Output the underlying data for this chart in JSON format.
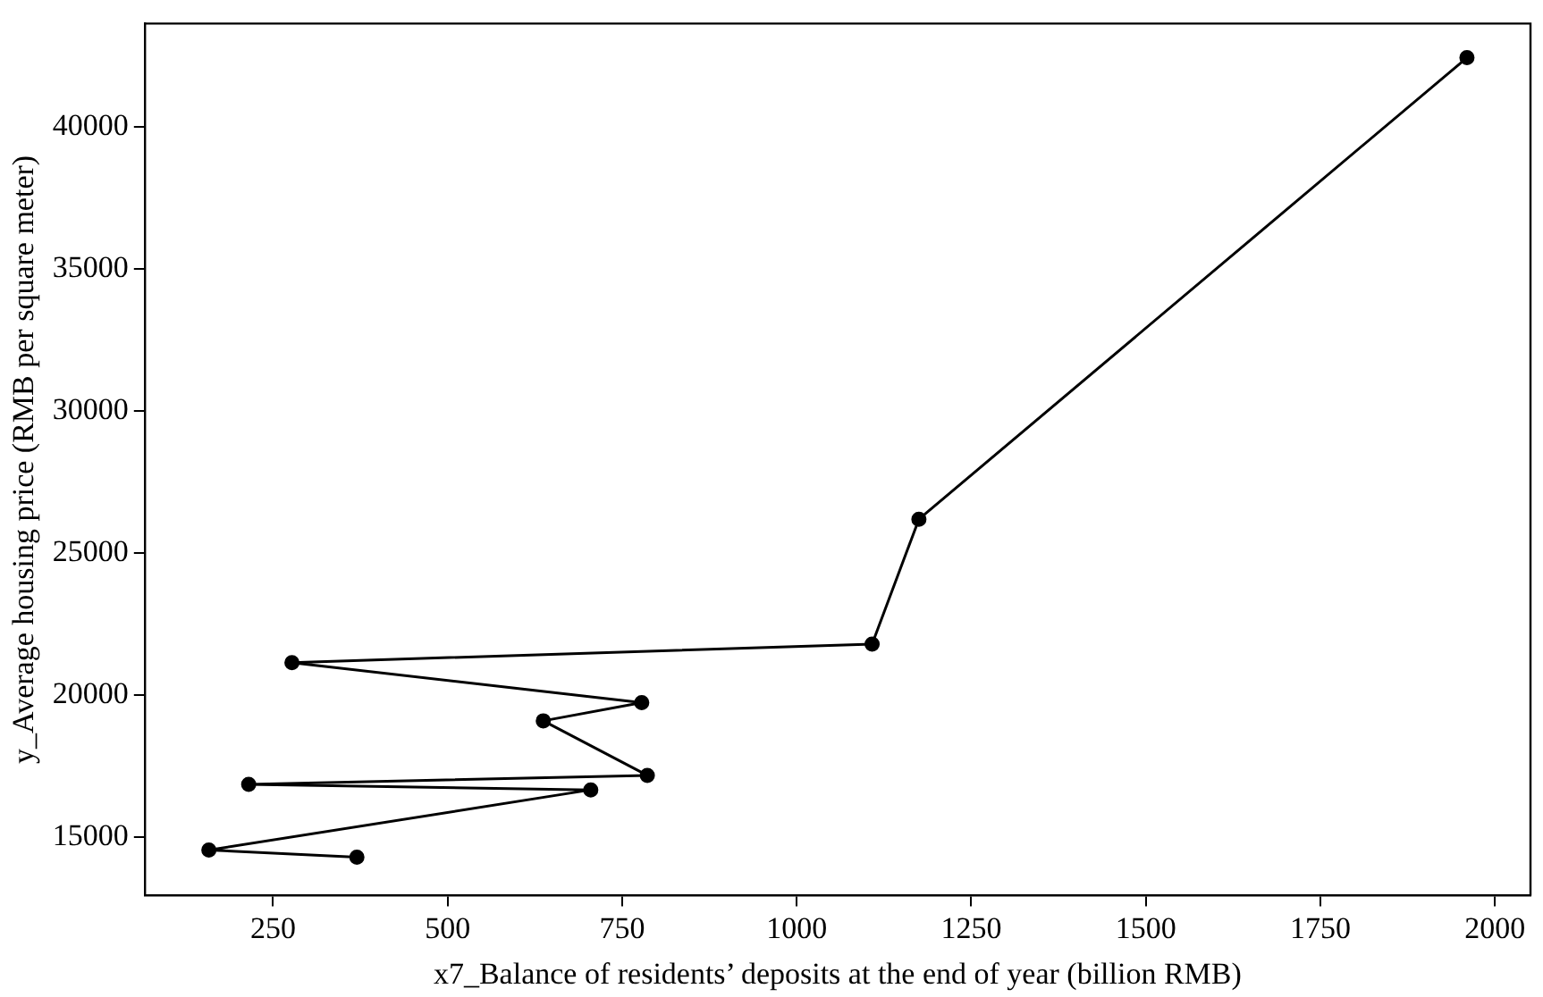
{
  "chart_data": {
    "type": "line",
    "xlabel": "x7_Balance of residents’ deposits at the end of year (billion RMB)",
    "ylabel": "y_Average housing price (RMB per square meter)",
    "series": [
      {
        "color": "#000000",
        "x": [
          370,
          158,
          705,
          215,
          786,
          637,
          778,
          277,
          1108,
          1175,
          1960
        ],
        "values": [
          14300,
          14550,
          16670,
          16860,
          17180,
          19100,
          19740,
          21150,
          21800,
          26200,
          42450
        ]
      }
    ],
    "xlim": [
      66,
      2051
    ],
    "ylim": [
      12950,
      43650
    ],
    "xticks": [
      250,
      500,
      750,
      1000,
      1250,
      1500,
      1750,
      2000
    ],
    "yticks": [
      15000,
      20000,
      25000,
      30000,
      35000,
      40000
    ],
    "grid": false,
    "legend": false,
    "marker": "circle",
    "line_style": "solid"
  }
}
